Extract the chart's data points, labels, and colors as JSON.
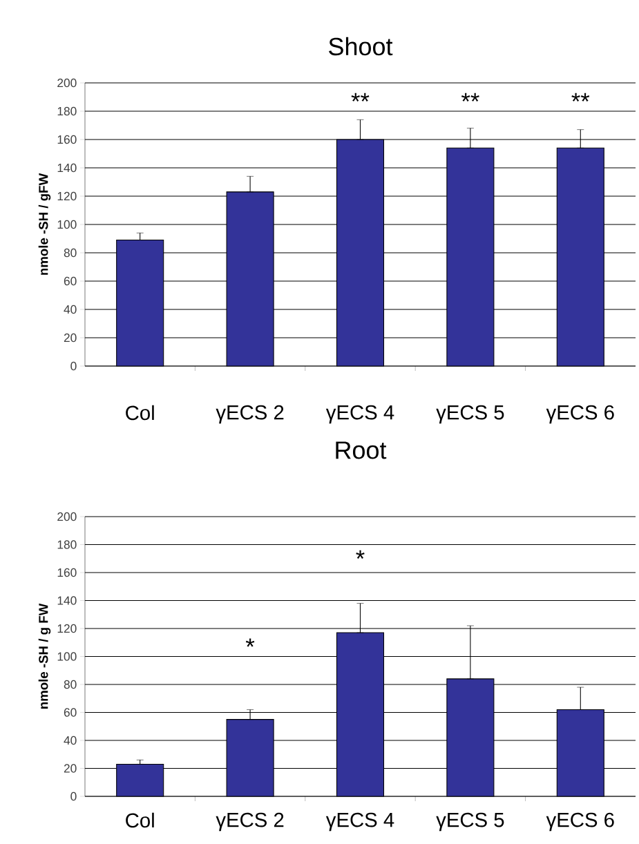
{
  "chart_data": [
    {
      "type": "bar",
      "title": "Shoot",
      "ylabel": "nmole -SH / gFW",
      "categories": [
        "Col",
        "γECS 2",
        "γECS 4",
        "γECS 5",
        "γECS 6"
      ],
      "values": [
        89,
        123,
        160,
        154,
        154
      ],
      "errors": [
        [
          89,
          94
        ],
        [
          123,
          134
        ],
        [
          160,
          174
        ],
        [
          154,
          168
        ],
        [
          154,
          167
        ]
      ],
      "color": "#333399",
      "ylim": [
        0,
        200
      ],
      "yticks": [
        0,
        20,
        40,
        60,
        80,
        100,
        120,
        140,
        160,
        180,
        200
      ],
      "grid": "y",
      "annotations": [
        "**",
        "**",
        "**"
      ]
    },
    {
      "type": "bar",
      "title": "Root",
      "ylabel": "nmole -SH / g FW",
      "categories": [
        "Col",
        "γECS 2",
        "γECS 4",
        "γECS 5",
        "γECS 6"
      ],
      "values": [
        23,
        55,
        117,
        84,
        62
      ],
      "errors": [
        [
          23,
          26
        ],
        [
          55,
          62
        ],
        [
          117,
          138
        ],
        [
          84,
          122
        ],
        [
          62,
          78
        ]
      ],
      "color": "#333399",
      "ylim": [
        0,
        200
      ],
      "yticks": [
        0,
        20,
        40,
        60,
        80,
        100,
        120,
        140,
        160,
        180,
        200
      ],
      "grid": "y",
      "annotations": [
        "*",
        "*"
      ]
    }
  ]
}
